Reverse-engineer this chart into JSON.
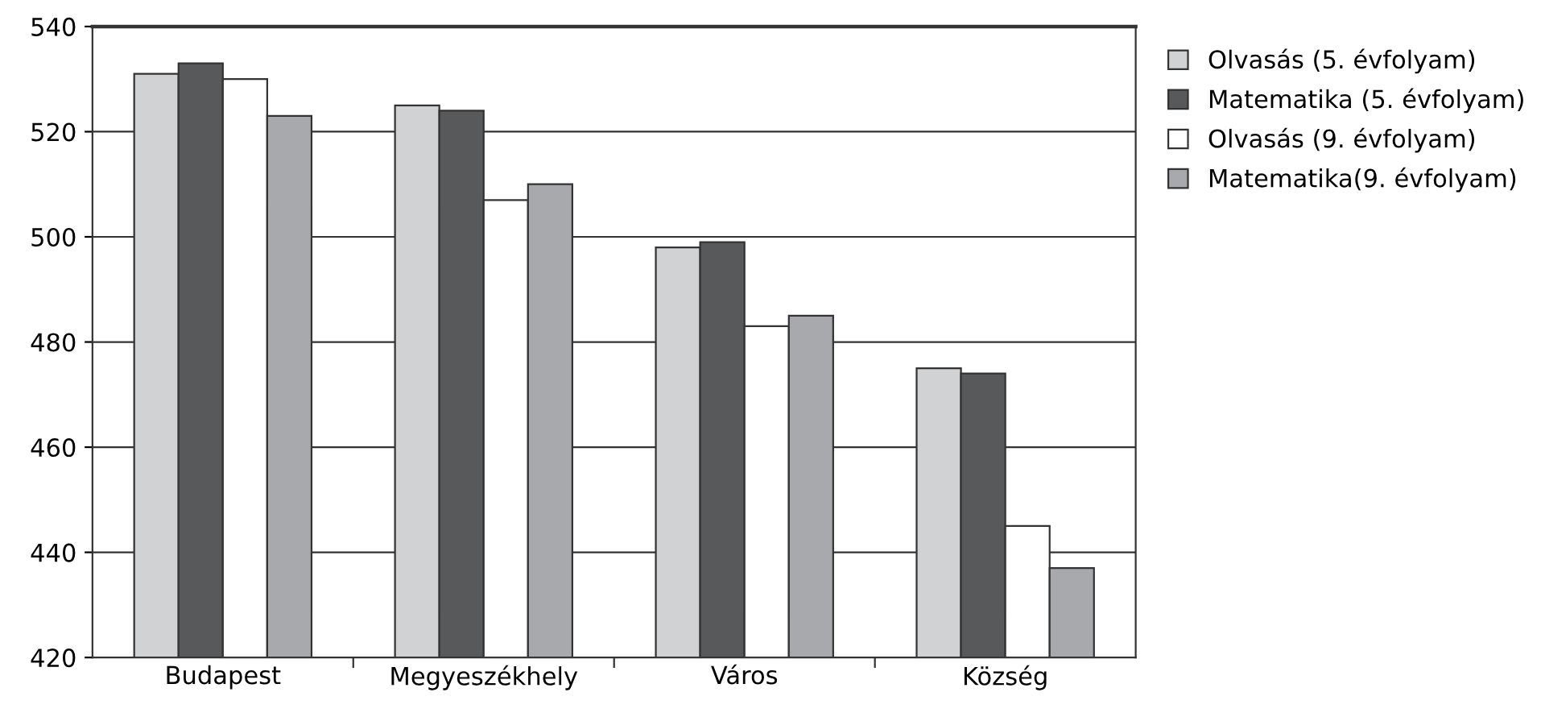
{
  "chart_data": {
    "type": "bar",
    "categories": [
      "Budapest",
      "Megyeszékhely",
      "Város",
      "Község"
    ],
    "series": [
      {
        "name": "Olvasás (5. évfolyam)",
        "color": "#d1d2d4",
        "values": [
          531,
          525,
          498,
          475
        ]
      },
      {
        "name": "Matematika (5. évfolyam)",
        "color": "#58595b",
        "values": [
          533,
          524,
          499,
          474
        ]
      },
      {
        "name": "Olvasás (9. évfolyam)",
        "color": "#ffffff",
        "values": [
          530,
          507,
          483,
          445
        ]
      },
      {
        "name": "Matematika(9. évfolyam)",
        "color": "#a7a9ac",
        "values": [
          523,
          510,
          485,
          437
        ]
      }
    ],
    "ylim": [
      420,
      540
    ],
    "yticks": [
      420,
      440,
      460,
      480,
      500,
      520,
      540
    ],
    "grid": "y",
    "legend": "right"
  }
}
